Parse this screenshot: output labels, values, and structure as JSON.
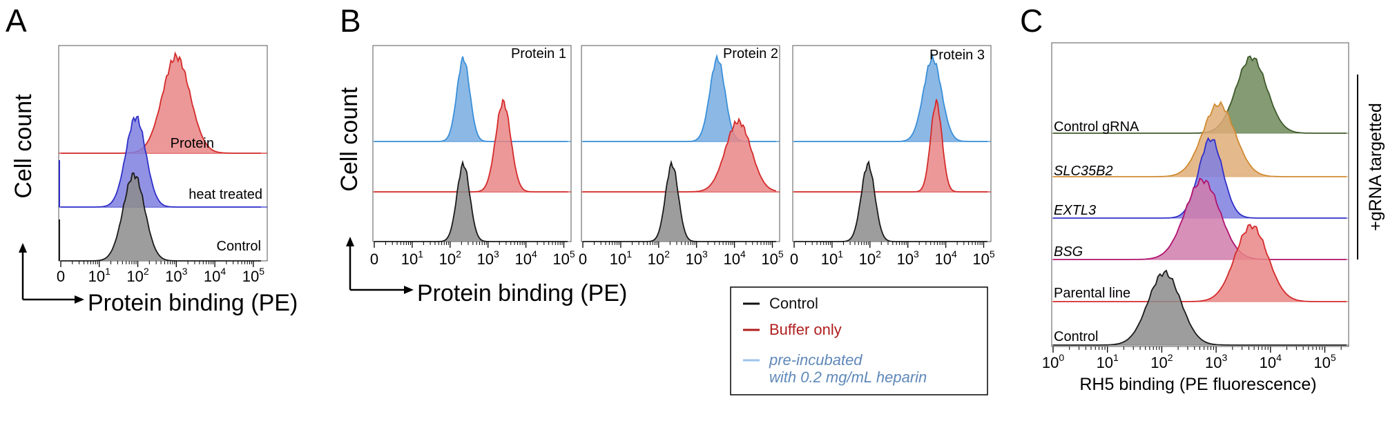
{
  "colors": {
    "black": "#1a1a1a",
    "grey_fill": "#8c8c8c",
    "red_line": "#d42a2a",
    "red_fill": "#e98686",
    "blue_line": "#2f2fc8",
    "blue_fill": "#7f7fe0",
    "lightblue_line": "#3a8fd8",
    "lightblue_fill": "#78ace0",
    "green_line": "#3e5a2a",
    "green_fill": "#6f8a5a",
    "orange_line": "#d08a30",
    "orange_fill": "#dfad78",
    "magenta_line": "#b0126e",
    "magenta_fill": "#d07cab",
    "legend_red_text": "#b01e1e",
    "legend_blue_text": "#5f88b8"
  },
  "panel_letters": {
    "a": "A",
    "b": "B",
    "c": "C"
  },
  "panel_a": {
    "ylabel": "Cell count",
    "xlabel": "Protein binding (PE)",
    "ticks": [
      {
        "value": 0,
        "label": "0"
      },
      {
        "value": 1,
        "label": "10",
        "exp": "1"
      },
      {
        "value": 2,
        "label": "10",
        "exp": "2"
      },
      {
        "value": 3,
        "label": "10",
        "exp": "3"
      },
      {
        "value": 4,
        "label": "10",
        "exp": "4"
      },
      {
        "value": 5,
        "label": "10",
        "exp": "5"
      }
    ],
    "labels": {
      "protein": "Protein",
      "heat": "heat treated",
      "control": "Control"
    }
  },
  "panel_b": {
    "ylabel": "Cell count",
    "xlabel": "Protein binding (PE)",
    "subplot_titles": [
      "Protein 1",
      "Protein 2",
      "Protein 3"
    ],
    "ticks": [
      {
        "value": 0,
        "label": "0"
      },
      {
        "value": 1,
        "label": "10",
        "exp": "1"
      },
      {
        "value": 2,
        "label": "10",
        "exp": "2"
      },
      {
        "value": 3,
        "label": "10",
        "exp": "3"
      },
      {
        "value": 4,
        "label": "10",
        "exp": "4"
      },
      {
        "value": 5,
        "label": "10",
        "exp": "5"
      }
    ]
  },
  "legend": {
    "control": "Control",
    "buffer": "Buffer only",
    "heparin_line1": "pre-incubated",
    "heparin_line2": "with 0.2 mg/mL heparin"
  },
  "panel_c": {
    "xlabel": "RH5 binding (PE fluorescence)",
    "bracket_label": "+gRNA targetted",
    "ticks": [
      {
        "value": 0,
        "label": "10",
        "exp": "0"
      },
      {
        "value": 1,
        "label": "10",
        "exp": "1"
      },
      {
        "value": 2,
        "label": "10",
        "exp": "2"
      },
      {
        "value": 3,
        "label": "10",
        "exp": "3"
      },
      {
        "value": 4,
        "label": "10",
        "exp": "4"
      },
      {
        "value": 5,
        "label": "10",
        "exp": "5"
      }
    ],
    "row_labels": {
      "control_grna": "Control gRNA",
      "slc35b2": "SLC35B2",
      "extl3": "EXTL3",
      "bsg": "BSG",
      "parental": "Parental line",
      "control": "Control"
    }
  },
  "chart_data": [
    {
      "panel": "A",
      "type": "histogram",
      "title": "",
      "xlabel": "Protein binding (PE)",
      "ylabel": "Cell count",
      "x_scale": "log10 (0 to 10^5)",
      "series": [
        {
          "name": "Control",
          "color": "black",
          "peak_log10": 1.9,
          "width": 0.28,
          "rel_height": 0.78
        },
        {
          "name": "heat treated",
          "color": "blue",
          "peak_log10": 1.95,
          "width": 0.26,
          "rel_height": 0.82
        },
        {
          "name": "Protein",
          "color": "red",
          "peak_log10": 3.0,
          "width": 0.36,
          "rel_height": 0.95
        }
      ]
    },
    {
      "panel": "B",
      "type": "histogram",
      "xlabel": "Protein binding (PE)",
      "ylabel": "Cell count",
      "subplots": [
        {
          "title": "Protein 1",
          "series": [
            {
              "name": "Control",
              "peak_log10": 2.35,
              "width": 0.17
            },
            {
              "name": "Buffer only",
              "peak_log10": 3.4,
              "width": 0.2
            },
            {
              "name": "pre-incubated with 0.2 mg/mL heparin",
              "peak_log10": 2.35,
              "width": 0.17
            }
          ]
        },
        {
          "title": "Protein 2",
          "series": [
            {
              "name": "Control",
              "peak_log10": 2.35,
              "width": 0.17
            },
            {
              "name": "Buffer only",
              "peak_log10": 4.1,
              "width": 0.34
            },
            {
              "name": "pre-incubated with 0.2 mg/mL heparin",
              "peak_log10": 3.55,
              "width": 0.2
            }
          ]
        },
        {
          "title": "Protein 3",
          "series": [
            {
              "name": "Control",
              "peak_log10": 1.95,
              "width": 0.18
            },
            {
              "name": "Buffer only",
              "peak_log10": 3.75,
              "width": 0.15
            },
            {
              "name": "pre-incubated with 0.2 mg/mL heparin",
              "peak_log10": 3.65,
              "width": 0.24
            }
          ]
        }
      ]
    },
    {
      "panel": "C",
      "type": "histogram",
      "xlabel": "RH5 binding (PE fluorescence)",
      "x_scale": "log10 (10^0 to 10^5)",
      "series": [
        {
          "name": "Control",
          "color": "black",
          "peak_log10": 2.05,
          "width": 0.3
        },
        {
          "name": "Parental line",
          "color": "red",
          "peak_log10": 3.65,
          "width": 0.3
        },
        {
          "name": "BSG",
          "color": "magenta",
          "peak_log10": 2.75,
          "width": 0.32
        },
        {
          "name": "EXTL3",
          "color": "blue",
          "peak_log10": 2.9,
          "width": 0.22
        },
        {
          "name": "SLC35B2",
          "color": "orange",
          "peak_log10": 3.05,
          "width": 0.3
        },
        {
          "name": "Control gRNA",
          "color": "green",
          "peak_log10": 3.65,
          "width": 0.28
        }
      ]
    }
  ]
}
